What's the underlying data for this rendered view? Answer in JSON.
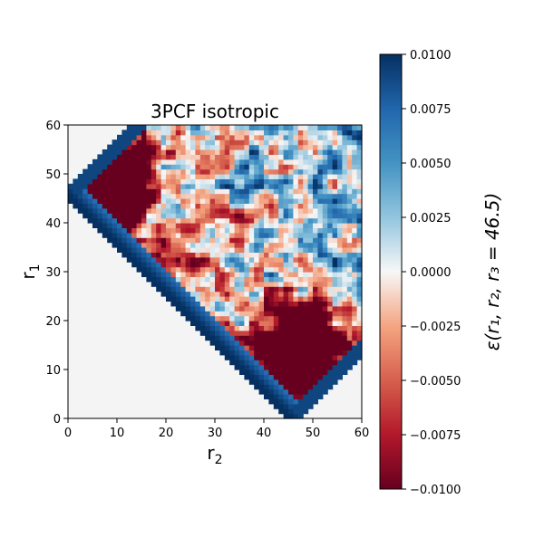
{
  "chart_data": {
    "type": "heatmap",
    "title": "3PCF isotropic",
    "xlabel": "r",
    "xlabel_sub": "2",
    "ylabel": "r",
    "ylabel_sub": "1",
    "xlim": [
      0,
      60
    ],
    "ylim": [
      0,
      60
    ],
    "x_ticks": [
      0,
      10,
      20,
      30,
      40,
      50,
      60
    ],
    "y_ticks": [
      0,
      10,
      20,
      30,
      40,
      50,
      60
    ],
    "colorbar": {
      "label": "ε(r₁, r₂, r₃ = 46.5)",
      "range": [
        -0.01,
        0.01
      ],
      "colormap": "RdBu",
      "ticks": [
        "0.0100",
        "0.0075",
        "0.0050",
        "0.0025",
        "0.0000",
        "−0.0025",
        "−0.0050",
        "−0.0075",
        "−0.0100"
      ],
      "tick_values": [
        0.01,
        0.0075,
        0.005,
        0.0025,
        0,
        -0.0025,
        -0.005,
        -0.0075,
        -0.01
      ]
    },
    "valid_region": "|r1 - r2| <= 46.5 <= r1 + r2",
    "features": [
      {
        "description": "strong negative blob",
        "r2_center": 8,
        "r1_center": 47,
        "value": -0.01
      },
      {
        "description": "strong negative blob",
        "r2_center": 48,
        "r1_center": 14,
        "value": -0.01
      },
      {
        "description": "positive band along diagonal edge r1 + r2 = 46.5",
        "value": 0.01
      },
      {
        "description": "moderately positive noisy region",
        "r2_center": 45,
        "r1_center": 45,
        "value": 0.003
      },
      {
        "description": "mildly negative noisy region",
        "r2_center": 25,
        "r1_center": 35,
        "value": -0.003
      }
    ],
    "grid": false
  }
}
